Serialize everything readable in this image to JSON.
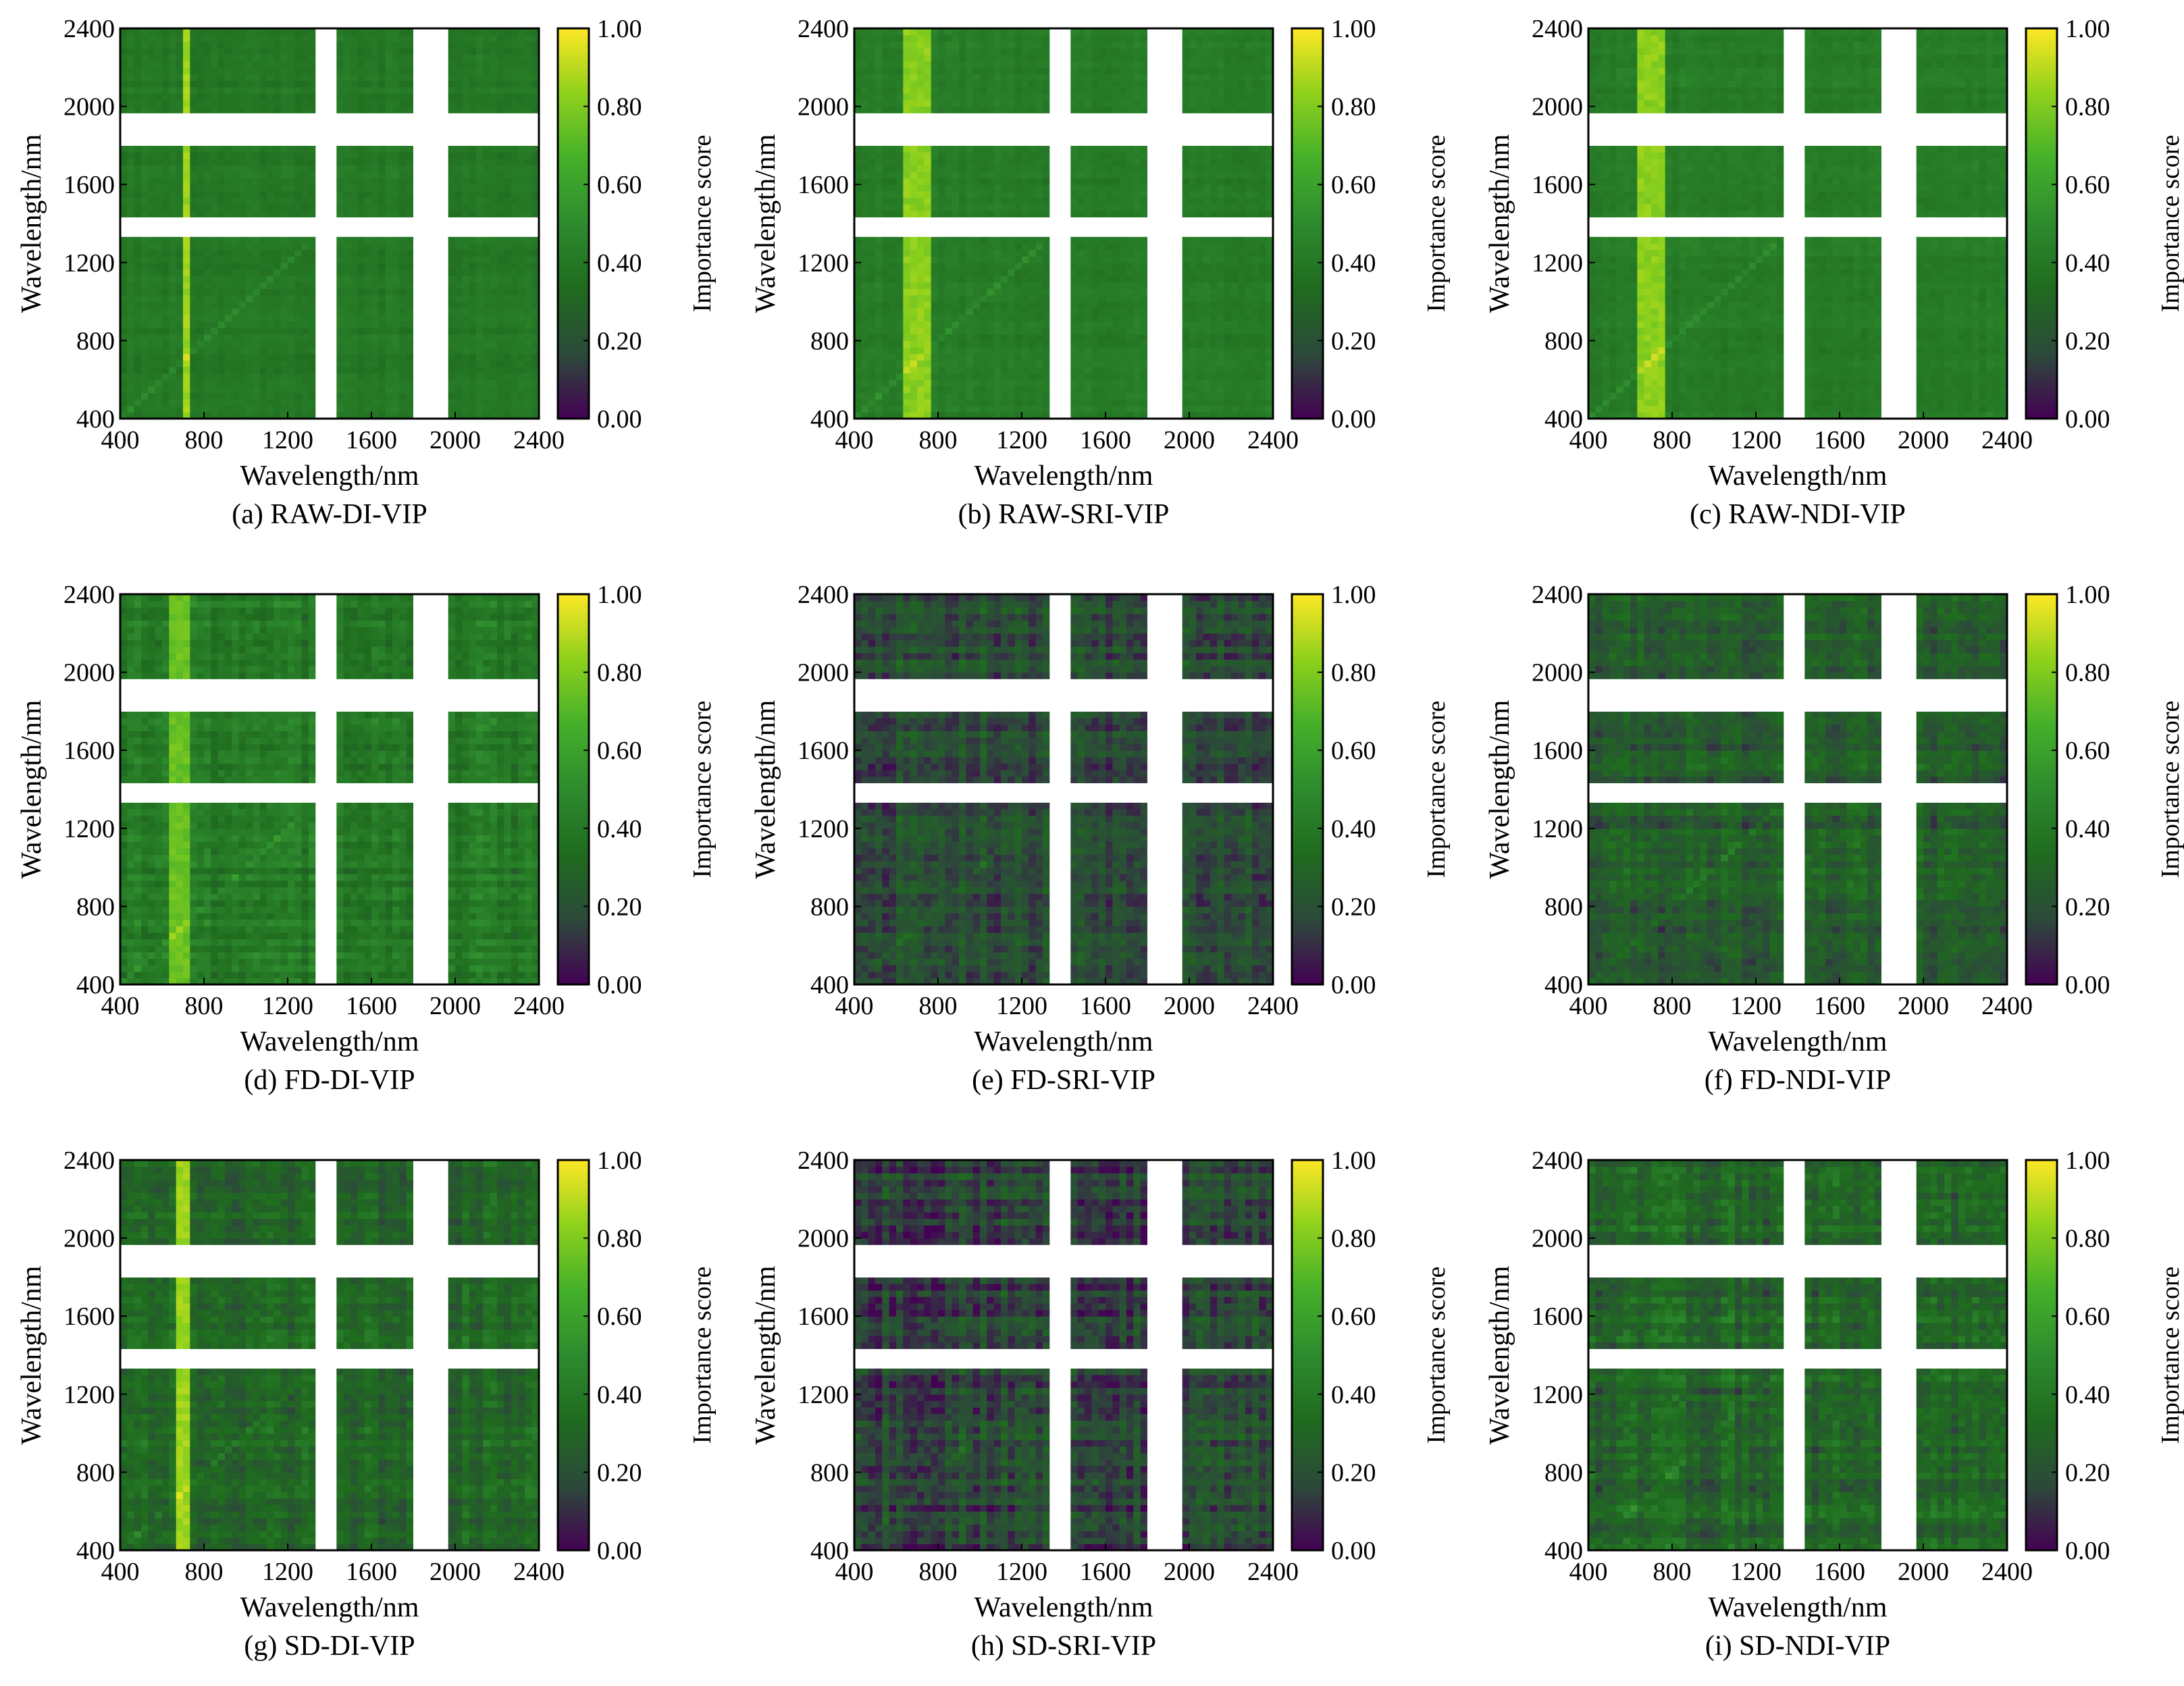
{
  "chart_data": {
    "type": "heatmap",
    "xlabel": "Wavelength/nm",
    "ylabel": "Wavelength/nm",
    "colorbar_label": "Importance score",
    "colorbar_ticks": [
      "0.00",
      "0.20",
      "0.40",
      "0.60",
      "0.80",
      "1.00"
    ],
    "colorbar_range": [
      0,
      1
    ],
    "axis_ticks": [
      "400",
      "800",
      "1200",
      "1600",
      "2000",
      "2400"
    ],
    "xlim": [
      400,
      2400
    ],
    "ylim": [
      400,
      2400
    ],
    "masked_bands_nm": [
      [
        1350,
        1430
      ],
      [
        1800,
        1950
      ]
    ],
    "colors": {
      "scale": [
        "#440154",
        "#2c4a3a",
        "#1f6b1f",
        "#2e8b2e",
        "#44b02a",
        "#8fd11c",
        "#fde725"
      ],
      "mask": "#ffffff"
    },
    "panels": [
      {
        "caption": "(a) RAW-DI-VIP",
        "base": 0.4,
        "noise": 0.04,
        "hot_band_nm": [
          690,
          730
        ],
        "hot_score": 0.85
      },
      {
        "caption": "(b) RAW-SRI-VIP",
        "base": 0.42,
        "noise": 0.04,
        "hot_band_nm": [
          650,
          750
        ],
        "hot_score": 0.82
      },
      {
        "caption": "(c) RAW-NDI-VIP",
        "base": 0.42,
        "noise": 0.04,
        "hot_band_nm": [
          650,
          750
        ],
        "hot_score": 0.82
      },
      {
        "caption": "(d) FD-DI-VIP",
        "base": 0.4,
        "noise": 0.1,
        "hot_band_nm": [
          620,
          720
        ],
        "hot_score": 0.75
      },
      {
        "caption": "(e) FD-SRI-VIP",
        "base": 0.18,
        "noise": 0.12,
        "hot_band_nm": null,
        "hot_score": 0
      },
      {
        "caption": "(f) FD-NDI-VIP",
        "base": 0.25,
        "noise": 0.12,
        "hot_band_nm": null,
        "hot_score": 0
      },
      {
        "caption": "(g) SD-DI-VIP",
        "base": 0.3,
        "noise": 0.12,
        "hot_band_nm": [
          660,
          730
        ],
        "hot_score": 0.85
      },
      {
        "caption": "(h) SD-SRI-VIP",
        "base": 0.16,
        "noise": 0.14,
        "hot_band_nm": null,
        "hot_score": 0
      },
      {
        "caption": "(i) SD-NDI-VIP",
        "base": 0.3,
        "noise": 0.14,
        "hot_band_nm": null,
        "hot_score": 0
      }
    ]
  }
}
